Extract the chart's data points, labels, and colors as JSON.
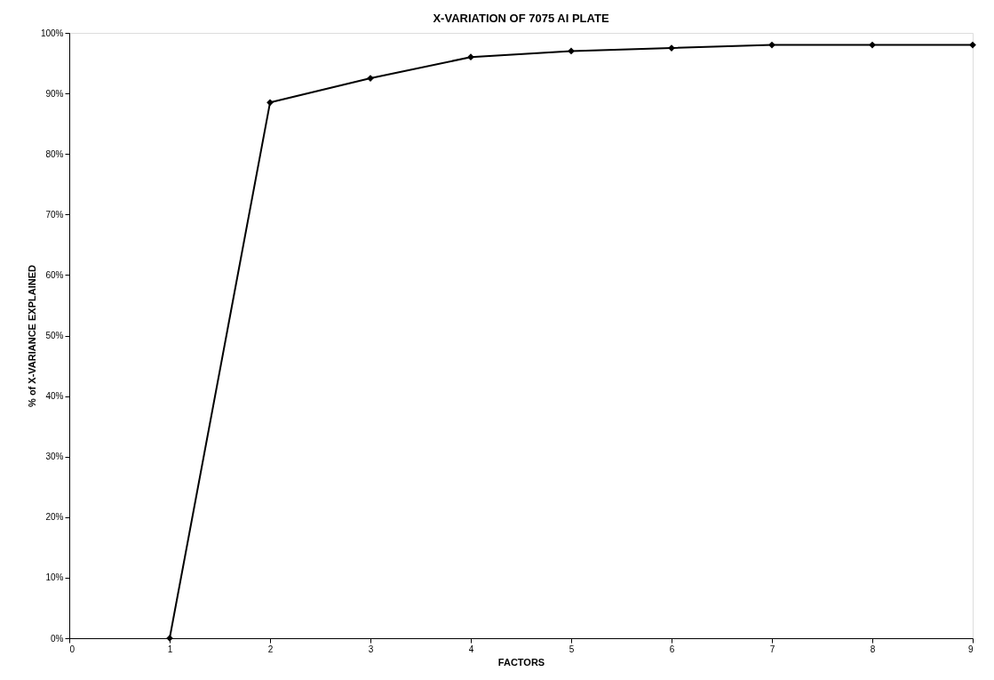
{
  "chart_data": {
    "type": "line",
    "title": "X-VARIATION OF 7075 AI PLATE",
    "xlabel": "FACTORS",
    "ylabel": "% of X-VARIANCE EXPLAINED",
    "x": [
      1,
      2,
      3,
      4,
      5,
      6,
      7,
      8,
      9
    ],
    "series": [
      {
        "color": "#000000",
        "values": [
          0,
          88.5,
          92.5,
          96,
          97,
          97.5,
          98,
          98,
          98
        ]
      }
    ],
    "xlim": [
      0,
      9
    ],
    "xticks": [
      0,
      1,
      2,
      3,
      4,
      5,
      6,
      7,
      8,
      9
    ],
    "ylim": [
      0,
      100
    ],
    "yticks": [
      {
        "value": 0,
        "label": "0%"
      },
      {
        "value": 10,
        "label": "10%"
      },
      {
        "value": 20,
        "label": "20%"
      },
      {
        "value": 30,
        "label": "30%"
      },
      {
        "value": 40,
        "label": "40%"
      },
      {
        "value": 50,
        "label": "50%"
      },
      {
        "value": 60,
        "label": "60%"
      },
      {
        "value": 70,
        "label": "70%"
      },
      {
        "value": 80,
        "label": "80%"
      },
      {
        "value": 90,
        "label": "90%"
      },
      {
        "value": 100,
        "label": "100%"
      }
    ],
    "grid": false,
    "legend": false,
    "marker": "diamond",
    "line_style": "solid"
  }
}
